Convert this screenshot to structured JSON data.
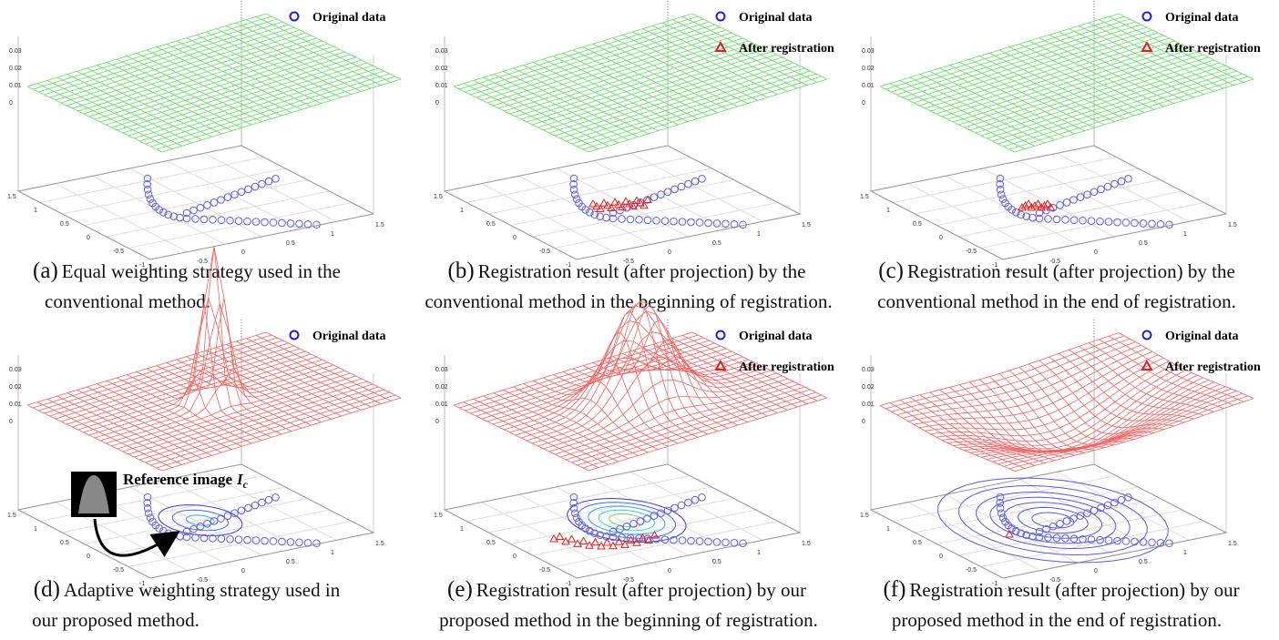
{
  "panels": [
    {
      "label": "(a)",
      "lines": [
        "Equal weighting strategy used in the",
        "conventional method."
      ],
      "legend": [
        "Original data"
      ],
      "z_ticks": [
        "0.03",
        "0.02",
        "0.01",
        "0"
      ],
      "y_ticks": [
        "1.5",
        "1",
        "0.5",
        "0",
        "-0.5",
        "-1"
      ],
      "x_ticks": [
        "-1",
        "-0.5",
        "0",
        "0.5",
        "1",
        "1.5"
      ]
    },
    {
      "label": "(b)",
      "lines": [
        "Registration result (after projection) by the",
        "conventional method in the beginning of registration."
      ],
      "legend": [
        "Original data",
        "After registration"
      ],
      "z_ticks": [
        "0.03",
        "0.02",
        "0.01",
        "0"
      ],
      "y_ticks": [
        "1.5",
        "1",
        "0.5",
        "0",
        "-0.5",
        "-1"
      ],
      "x_ticks": [
        "-1",
        "-0.5",
        "0",
        "0.5",
        "1",
        "1.5"
      ]
    },
    {
      "label": "(c)",
      "lines": [
        "Registration result (after projection) by the",
        "conventional method in the end of registration."
      ],
      "legend": [
        "Original data",
        "After registration"
      ],
      "z_ticks": [
        "0.03",
        "0.02",
        "0.01",
        "0"
      ],
      "y_ticks": [
        "1.5",
        "1",
        "0.5",
        "0",
        "-0.5",
        "-1"
      ],
      "x_ticks": [
        "-1",
        "-0.5",
        "0",
        "0.5",
        "1",
        "1.5"
      ]
    },
    {
      "label": "(d)",
      "lines": [
        "Adaptive weighting strategy used in",
        "our proposed method."
      ],
      "legend": [
        "Original data"
      ],
      "z_ticks": [
        "0.03",
        "0.02",
        "0.01",
        "0"
      ],
      "y_ticks": [
        "1.5",
        "1",
        "0.5",
        "0",
        "-0.5",
        "-1"
      ],
      "x_ticks": [
        "-1",
        "-0.5",
        "0",
        "0.5",
        "1",
        "1.5"
      ]
    },
    {
      "label": "(e)",
      "lines": [
        "Registration result (after projection) by our",
        "proposed method in the beginning of registration."
      ],
      "legend": [
        "Original data",
        "After registration"
      ],
      "z_ticks": [
        "0.03",
        "0.02",
        "0.01",
        "0"
      ],
      "y_ticks": [
        "1.5",
        "1",
        "0.5",
        "0",
        "-0.5",
        "-1"
      ],
      "x_ticks": [
        "-1",
        "-0.5",
        "0",
        "0.5",
        "1",
        "1.5"
      ]
    },
    {
      "label": "(f)",
      "lines": [
        "Registration result (after projection) by our",
        "proposed method in the end of registration."
      ],
      "legend": [
        "Original data",
        "After registration"
      ],
      "z_ticks": [
        "0.03",
        "0.02",
        "0.01",
        "0"
      ],
      "y_ticks": [
        "1.5",
        "1",
        "0.5",
        "0",
        "-0.5",
        "-1"
      ],
      "x_ticks": [
        "-1",
        "-0.5",
        "0",
        "0.5",
        "1",
        "1.5"
      ]
    }
  ],
  "annotation": {
    "text": "Reference image",
    "symbol": "I",
    "subscript": "c"
  }
}
